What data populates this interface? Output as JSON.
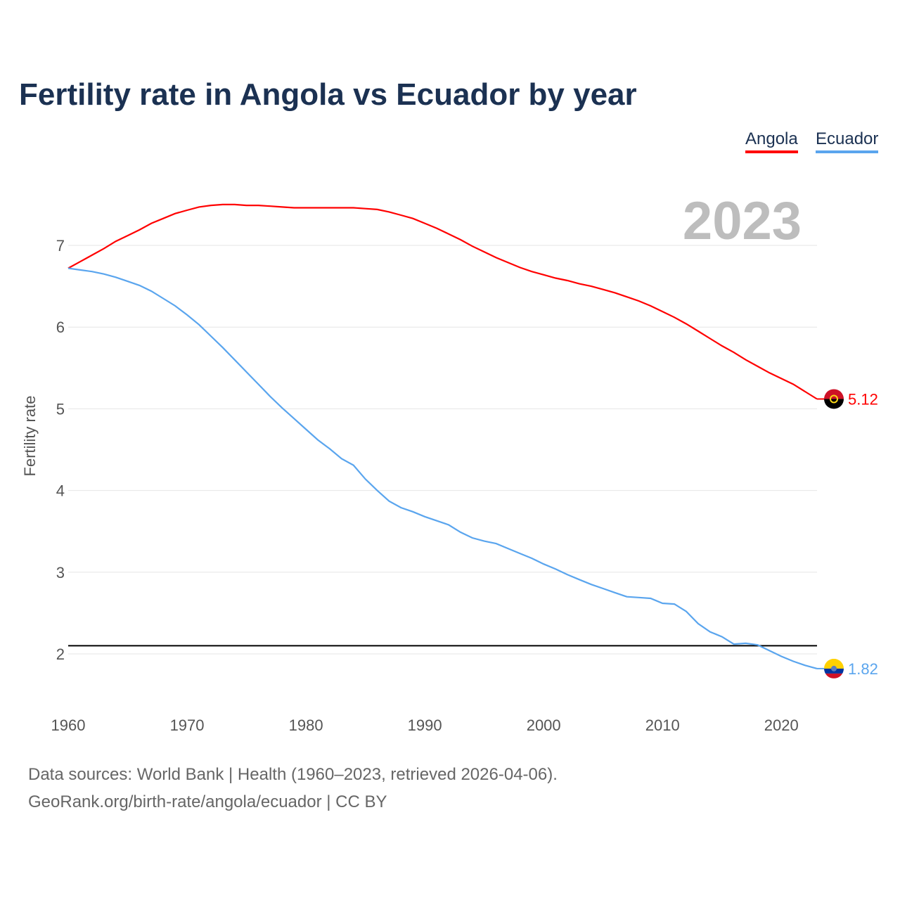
{
  "chart_data": {
    "type": "line",
    "title": "Fertility rate in Angola vs Ecuador by year",
    "xlabel": "",
    "ylabel": "Fertility rate",
    "xlim": [
      1960,
      2023
    ],
    "ylim": [
      1.5,
      7.8
    ],
    "xticks": [
      "1960",
      "1970",
      "1980",
      "1990",
      "2000",
      "2010",
      "2020"
    ],
    "yticks": [
      "2",
      "3",
      "4",
      "5",
      "6",
      "7"
    ],
    "year_label": "2023",
    "reference_line": 2.1,
    "legend_position": "top-right",
    "x": [
      1960,
      1961,
      1962,
      1963,
      1964,
      1965,
      1966,
      1967,
      1968,
      1969,
      1970,
      1971,
      1972,
      1973,
      1974,
      1975,
      1976,
      1977,
      1978,
      1979,
      1980,
      1981,
      1982,
      1983,
      1984,
      1985,
      1986,
      1987,
      1988,
      1989,
      1990,
      1991,
      1992,
      1993,
      1994,
      1995,
      1996,
      1997,
      1998,
      1999,
      2000,
      2001,
      2002,
      2003,
      2004,
      2005,
      2006,
      2007,
      2008,
      2009,
      2010,
      2011,
      2012,
      2013,
      2014,
      2015,
      2016,
      2017,
      2018,
      2019,
      2020,
      2021,
      2022,
      2023
    ],
    "series": [
      {
        "name": "Angola",
        "color": "#ff0000",
        "end_label": "5.12",
        "values": [
          6.72,
          6.8,
          6.88,
          6.96,
          7.05,
          7.12,
          7.19,
          7.27,
          7.33,
          7.39,
          7.43,
          7.47,
          7.49,
          7.5,
          7.5,
          7.49,
          7.49,
          7.48,
          7.47,
          7.46,
          7.46,
          7.46,
          7.46,
          7.46,
          7.46,
          7.45,
          7.44,
          7.41,
          7.37,
          7.33,
          7.27,
          7.21,
          7.14,
          7.07,
          6.99,
          6.92,
          6.85,
          6.79,
          6.73,
          6.68,
          6.64,
          6.6,
          6.57,
          6.53,
          6.5,
          6.46,
          6.42,
          6.37,
          6.32,
          6.26,
          6.19,
          6.12,
          6.04,
          5.95,
          5.86,
          5.77,
          5.69,
          5.6,
          5.52,
          5.44,
          5.37,
          5.3,
          5.21,
          5.12
        ]
      },
      {
        "name": "Ecuador",
        "color": "#5aa5ee",
        "end_label": "1.82",
        "values": [
          6.72,
          6.7,
          6.68,
          6.65,
          6.61,
          6.56,
          6.51,
          6.44,
          6.35,
          6.26,
          6.15,
          6.03,
          5.89,
          5.75,
          5.6,
          5.45,
          5.3,
          5.15,
          5.01,
          4.88,
          4.75,
          4.62,
          4.51,
          4.39,
          4.31,
          4.14,
          4.0,
          3.87,
          3.79,
          3.74,
          3.68,
          3.63,
          3.58,
          3.49,
          3.42,
          3.38,
          3.35,
          3.29,
          3.23,
          3.17,
          3.1,
          3.04,
          2.97,
          2.91,
          2.85,
          2.8,
          2.75,
          2.7,
          2.69,
          2.68,
          2.62,
          2.61,
          2.52,
          2.37,
          2.27,
          2.21,
          2.12,
          2.13,
          2.11,
          2.04,
          1.97,
          1.91,
          1.86,
          1.82
        ]
      }
    ]
  },
  "footer": {
    "sources": "Data sources: World Bank | Health (1960–2023, retrieved 2026-04-06).",
    "credit": "GeoRank.org/birth-rate/angola/ecuador | CC BY"
  }
}
